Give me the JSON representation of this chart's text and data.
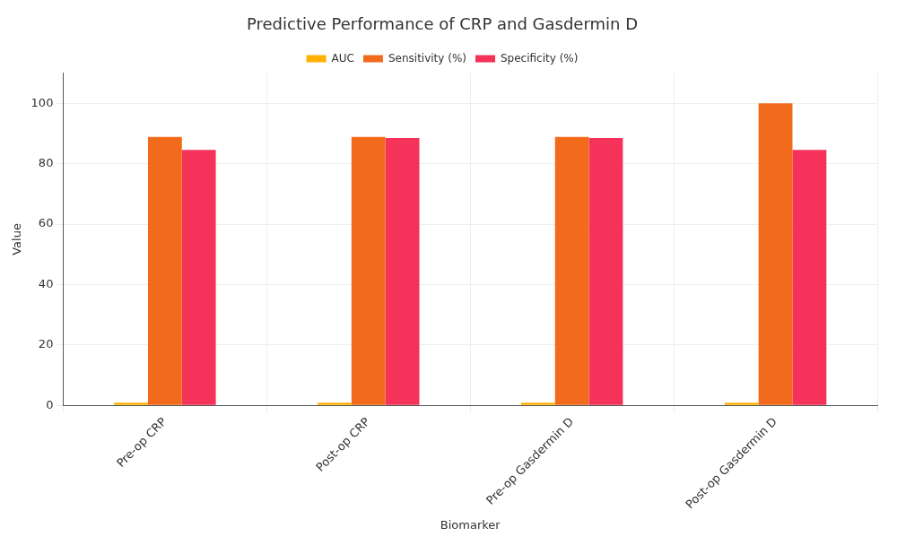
{
  "chart_data": {
    "type": "bar",
    "title": "Predictive Performance of CRP and Gasdermin D",
    "xlabel": "Biomarker",
    "ylabel": "Value",
    "categories": [
      "Pre-op CRP",
      "Post-op CRP",
      "Pre-op Gasdermin D",
      "Post-op Gasdermin D"
    ],
    "series": [
      {
        "name": "AUC",
        "color": "#ffb000",
        "values": [
          0.9,
          0.9,
          0.9,
          0.9
        ]
      },
      {
        "name": "Sensitivity (%)",
        "color": "#f26b1d",
        "values": [
          88.9,
          88.9,
          88.9,
          100
        ]
      },
      {
        "name": "Specificity (%)",
        "color": "#f4325a",
        "values": [
          84.6,
          88.5,
          88.5,
          84.6
        ]
      }
    ],
    "ylim": [
      0,
      110
    ],
    "yticks": [
      0,
      20,
      40,
      60,
      80,
      100
    ],
    "grid": true,
    "legend": "top"
  }
}
